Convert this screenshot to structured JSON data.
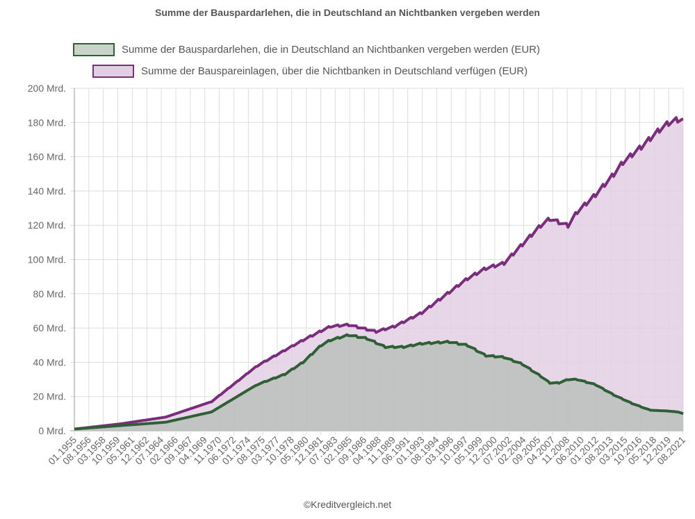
{
  "chart_data": {
    "type": "area",
    "title": "Summe der Bauspardarlehen, die in Deutschland an Nichtbanken vergeben werden",
    "xlabel": "",
    "ylabel": "",
    "ylim": [
      0,
      200
    ],
    "y_ticks": [
      "0 Mrd.",
      "20 Mrd.",
      "40 Mrd.",
      "60 Mrd.",
      "80 Mrd.",
      "100 Mrd.",
      "120 Mrd.",
      "140 Mrd.",
      "160 Mrd.",
      "180 Mrd.",
      "200 Mrd."
    ],
    "y_tick_values": [
      0,
      20,
      40,
      60,
      80,
      100,
      120,
      140,
      160,
      180,
      200
    ],
    "x_range": [
      1955.0,
      2021.6
    ],
    "x_tick_labels": [
      "01.1955",
      "08.1956",
      "03.1958",
      "10.1959",
      "05.1961",
      "12.1962",
      "07.1964",
      "02.1966",
      "09.1967",
      "04.1969",
      "11.1970",
      "06.1972",
      "01.1974",
      "08.1975",
      "03.1977",
      "10.1978",
      "05.1980",
      "12.1981",
      "07.1983",
      "02.1985",
      "09.1986",
      "04.1988",
      "11.1989",
      "06.1991",
      "01.1993",
      "08.1994",
      "03.1996",
      "10.1997",
      "05.1999",
      "12.2000",
      "07.2002",
      "02.2004",
      "09.2005",
      "04.2007",
      "11.2008",
      "06.2010",
      "01.2012",
      "08.2013",
      "03.2015",
      "10.2016",
      "05.2018",
      "12.2019",
      "08.2021"
    ],
    "grid": true,
    "legend_position": "top-center",
    "series": [
      {
        "name": "Summe der Bauspareinlagen, über die Nichtbanken in Deutschland verfügen (EUR)",
        "stroke": "#7a2c7d",
        "fill": "#e2cfe3",
        "x": [
          1955,
          1960,
          1965,
          1970,
          1975,
          1980,
          1983,
          1985,
          1988,
          1990,
          1993,
          1995,
          1998,
          2000,
          2002,
          2004,
          2006,
          2007,
          2008,
          2009,
          2010,
          2012,
          2014,
          2015,
          2017,
          2019,
          2020,
          2021,
          2021.6
        ],
        "values": [
          1,
          4,
          8,
          17,
          38,
          53,
          61,
          62,
          58,
          61,
          69,
          77,
          89,
          95,
          98,
          109,
          120,
          124,
          122,
          120,
          128,
          138,
          150,
          157,
          166,
          176,
          180,
          182,
          182
        ]
      },
      {
        "name": "Summe der Bauspardarlehen, die in Deutschland an Nichtbanken vergeben werden (EUR)",
        "stroke": "#2f5f34",
        "fill": "#a9b8ab",
        "x": [
          1955,
          1960,
          1965,
          1970,
          1975,
          1978,
          1980,
          1982,
          1983,
          1985,
          1987,
          1989,
          1991,
          1993,
          1996,
          1998,
          2000,
          2002,
          2004,
          2006,
          2007,
          2008,
          2009,
          2010,
          2012,
          2014,
          2016,
          2018,
          2020,
          2021,
          2021.6
        ],
        "values": [
          1,
          3,
          5,
          11,
          27,
          33,
          40,
          50,
          53,
          56,
          54,
          49,
          49,
          51,
          52,
          50,
          44,
          43,
          39,
          32,
          28,
          28,
          30,
          30,
          27,
          21,
          16,
          12,
          11.5,
          11,
          10
        ]
      }
    ]
  },
  "credit": "©Kreditvergleich.net"
}
